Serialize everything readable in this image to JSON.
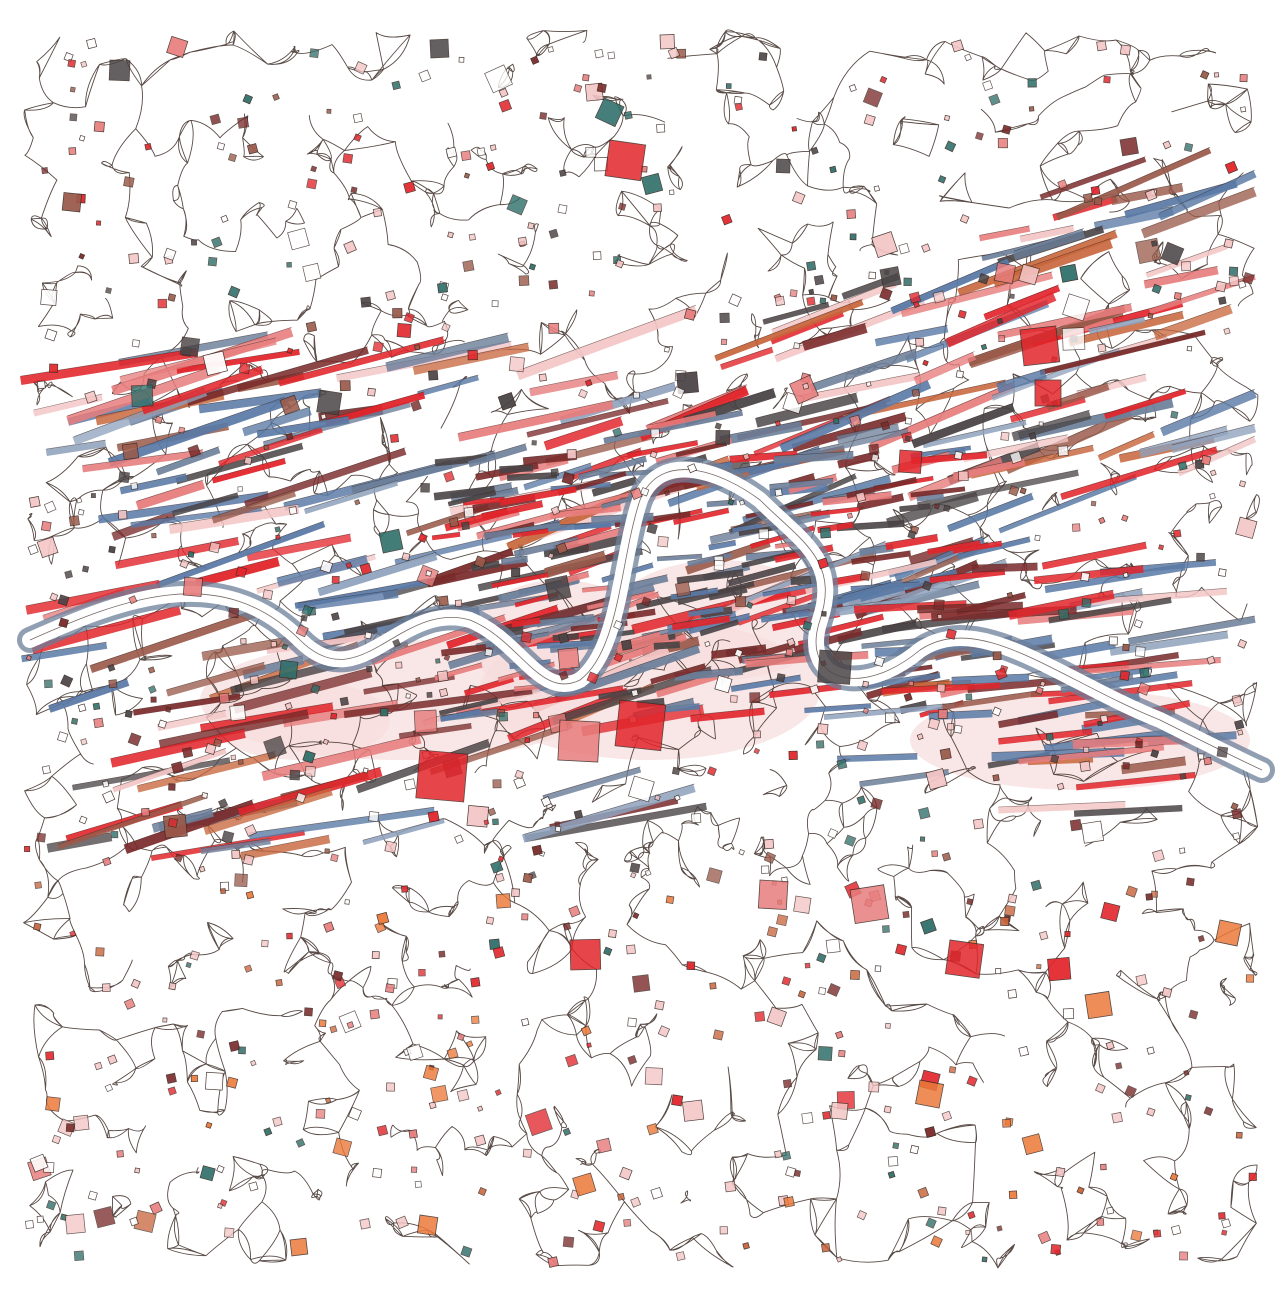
{
  "artwork": {
    "subject": "abstract-watercolor-city-map",
    "palette": {
      "paper": "#ffffff",
      "ink": "#3b2a24",
      "red": "#e2252b",
      "salmon": "#e87d7d",
      "pink": "#f4c6c6",
      "blush": "#f7dede",
      "blue": "#5a7aa6",
      "slate": "#6c7f9a",
      "steel": "#8fa2bd",
      "charcoal": "#4a4446",
      "maroon": "#7a2a2a",
      "brown": "#9a5a4a",
      "teal": "#2f6f6a",
      "orange": "#ec7a3a",
      "rust": "#c8663c"
    }
  }
}
